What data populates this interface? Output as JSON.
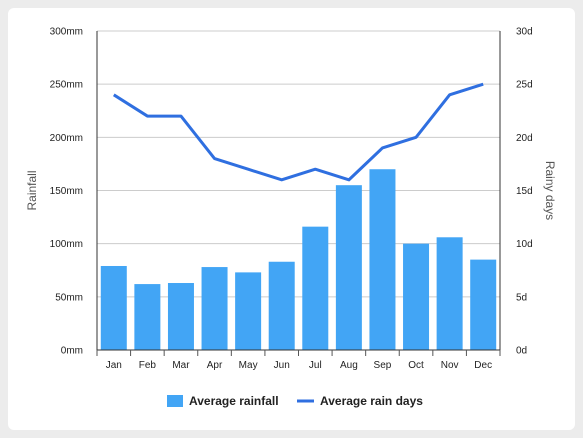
{
  "chart_data": {
    "type": "bar",
    "categories": [
      "Jan",
      "Feb",
      "Mar",
      "Apr",
      "May",
      "Jun",
      "Jul",
      "Aug",
      "Sep",
      "Oct",
      "Nov",
      "Dec"
    ],
    "series": [
      {
        "name": "Average rainfall",
        "type": "bar",
        "axis": "left",
        "color": "#42a5f5",
        "values": [
          79,
          62,
          63,
          78,
          73,
          83,
          116,
          155,
          170,
          100,
          106,
          85
        ]
      },
      {
        "name": "Average rain days",
        "type": "line",
        "axis": "right",
        "color": "#2f6fe0",
        "values": [
          24,
          22,
          22,
          18,
          17,
          16,
          17,
          16,
          19,
          20,
          24,
          25
        ]
      }
    ],
    "y_left": {
      "label": "Rainfall",
      "ylim": [
        0,
        300
      ],
      "ticks": [
        "0mm",
        "50mm",
        "100mm",
        "150mm",
        "200mm",
        "250mm",
        "300mm"
      ]
    },
    "y_right": {
      "label": "Rainy days",
      "ylim": [
        0,
        30
      ],
      "ticks": [
        "0d",
        "5d",
        "10d",
        "15d",
        "20d",
        "25d",
        "30d"
      ]
    },
    "grid": true,
    "legend_position": "bottom-center"
  }
}
